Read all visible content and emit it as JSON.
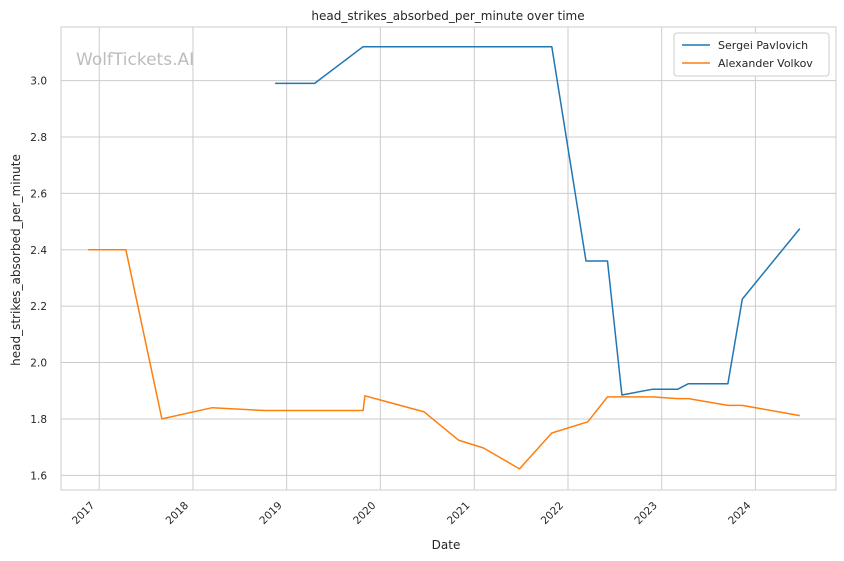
{
  "chart_data": {
    "type": "line",
    "title": "head_strikes_absorbed_per_minute over time",
    "xlabel": "Date",
    "ylabel": "head_strikes_absorbed_per_minute",
    "watermark": "WolfTickets.AI",
    "x_ticks": [
      "2017",
      "2018",
      "2019",
      "2020",
      "2021",
      "2022",
      "2023",
      "2024"
    ],
    "y_ticks": [
      "1.6",
      "1.8",
      "2.0",
      "2.2",
      "2.4",
      "2.6",
      "2.8",
      "3.0"
    ],
    "xlim": [
      "2016-08-05",
      "2024-11-10"
    ],
    "ylim": [
      1.548,
      3.19
    ],
    "grid": true,
    "legend_position": "top-right",
    "series": [
      {
        "name": "Sergei Pavlovich",
        "color": "#1f77b4",
        "points": [
          [
            "2018-11-17",
            2.99
          ],
          [
            "2019-04-20",
            2.99
          ],
          [
            "2019-10-26",
            3.12
          ],
          [
            "2021-10-30",
            3.12
          ],
          [
            "2022-03-12",
            2.36
          ],
          [
            "2022-06-04",
            2.36
          ],
          [
            "2022-07-30",
            1.885
          ],
          [
            "2022-11-25",
            1.905
          ],
          [
            "2023-03-04",
            1.905
          ],
          [
            "2023-04-15",
            1.925
          ],
          [
            "2023-09-16",
            1.925
          ],
          [
            "2023-11-11",
            2.225
          ],
          [
            "2024-06-22",
            2.475
          ]
        ]
      },
      {
        "name": "Alexander Volkov",
        "color": "#ff7f0e",
        "points": [
          [
            "2016-11-19",
            2.4
          ],
          [
            "2017-04-15",
            2.4
          ],
          [
            "2017-09-02",
            1.8
          ],
          [
            "2018-03-17",
            1.84
          ],
          [
            "2018-10-06",
            1.83
          ],
          [
            "2019-10-26",
            1.83
          ],
          [
            "2019-11-02",
            1.882
          ],
          [
            "2020-06-20",
            1.825
          ],
          [
            "2020-10-31",
            1.725
          ],
          [
            "2021-02-06",
            1.697
          ],
          [
            "2021-06-26",
            1.623
          ],
          [
            "2021-10-30",
            1.75
          ],
          [
            "2022-03-19",
            1.79
          ],
          [
            "2022-06-04",
            1.878
          ],
          [
            "2022-11-25",
            1.878
          ],
          [
            "2023-03-04",
            1.872
          ],
          [
            "2023-04-15",
            1.872
          ],
          [
            "2023-09-16",
            1.848
          ],
          [
            "2023-11-11",
            1.848
          ],
          [
            "2024-06-22",
            1.812
          ]
        ]
      }
    ]
  }
}
